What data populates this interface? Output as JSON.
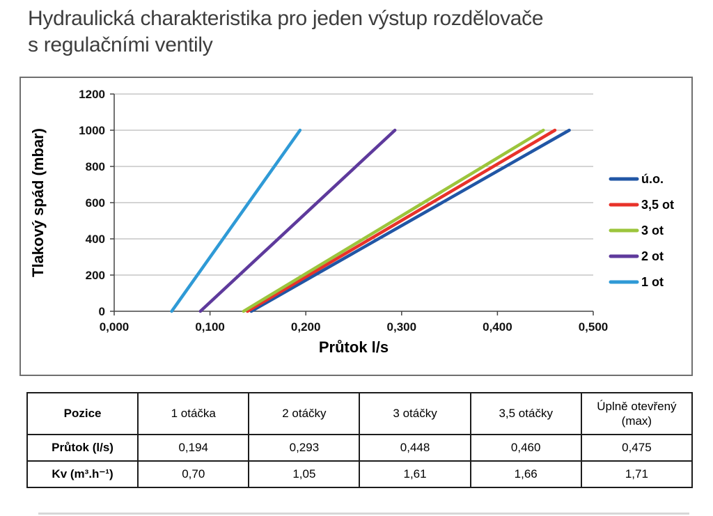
{
  "title_line1": "Hydraulická charakteristika pro jeden výstup rozdělovače",
  "title_line2": "s regulačními ventily",
  "chart_data": {
    "type": "line",
    "title": "",
    "xlabel": "Průtok l/s",
    "ylabel": "Tlakový spád (mbar)",
    "xlim": [
      0,
      0.5
    ],
    "ylim": [
      0,
      1200
    ],
    "x_ticks": [
      0,
      0.1,
      0.2,
      0.3,
      0.4,
      0.5
    ],
    "x_tick_labels": [
      "0,000",
      "0,100",
      "0,200",
      "0,300",
      "0,400",
      "0,500"
    ],
    "y_ticks": [
      0,
      200,
      400,
      600,
      800,
      1000,
      1200
    ],
    "grid": "horizontal",
    "legend_position": "right",
    "series": [
      {
        "name": "ú.o.",
        "color": "#2156a5",
        "points": [
          [
            0.143,
            0
          ],
          [
            0.475,
            1000
          ]
        ]
      },
      {
        "name": "3,5 ot",
        "color": "#e8322a",
        "points": [
          [
            0.139,
            0
          ],
          [
            0.46,
            1000
          ]
        ]
      },
      {
        "name": "3 ot",
        "color": "#9cc53c",
        "points": [
          [
            0.135,
            0
          ],
          [
            0.448,
            1000
          ]
        ]
      },
      {
        "name": "2 ot",
        "color": "#5e3a9c",
        "points": [
          [
            0.09,
            0
          ],
          [
            0.293,
            1000
          ]
        ]
      },
      {
        "name": "1 ot",
        "color": "#2f9ad6",
        "points": [
          [
            0.06,
            0
          ],
          [
            0.194,
            1000
          ]
        ]
      }
    ]
  },
  "table": {
    "header": [
      "Pozice",
      "1 otáčka",
      "2 otáčky",
      "3 otáčky",
      "3,5 otáčky",
      "Úplně otevřený (max)"
    ],
    "rows": [
      {
        "label": "Průtok (l/s)",
        "values": [
          "0,194",
          "0,293",
          "0,448",
          "0,460",
          "0,475"
        ]
      },
      {
        "label": "Kv (m³.h⁻¹)",
        "values": [
          "0,70",
          "1,05",
          "1,61",
          "1,66",
          "1,71"
        ]
      }
    ]
  }
}
